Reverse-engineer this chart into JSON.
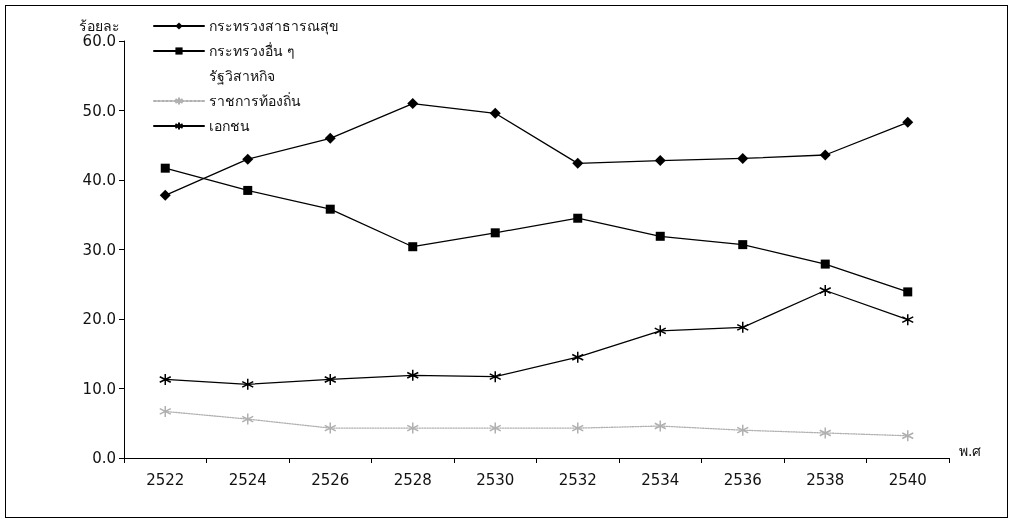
{
  "chart_data": {
    "type": "line",
    "ylabel": "ร้อยละ",
    "xlabel": "พ.ศ",
    "categories": [
      "2522",
      "2524",
      "2526",
      "2528",
      "2530",
      "2532",
      "2534",
      "2536",
      "2538",
      "2540"
    ],
    "series": [
      {
        "name": "กระทรวงสาธารณสุข",
        "color": "#000000",
        "marker": "diamond",
        "line_style": "solid",
        "values": [
          37.8,
          43.0,
          46.0,
          51.0,
          49.6,
          42.4,
          42.8,
          43.1,
          43.6,
          48.3
        ]
      },
      {
        "name": "กระทรวงอื่น ๆ",
        "color": "#000000",
        "marker": "square",
        "line_style": "solid",
        "values": [
          41.7,
          38.5,
          35.8,
          30.4,
          32.4,
          34.5,
          31.9,
          30.7,
          27.9,
          23.9
        ]
      },
      {
        "name": "รัฐวิสาหกิจ",
        "marker": "none",
        "line_style": "solid",
        "values": [
          null,
          null,
          null,
          null,
          null,
          null,
          null,
          null,
          null,
          null
        ]
      },
      {
        "name": "ราชการท้องถิ่น",
        "color": "#b0b0b0",
        "marker": "cross",
        "line_style": "dotted",
        "values": [
          6.7,
          5.6,
          4.3,
          4.3,
          4.3,
          4.3,
          4.6,
          4.0,
          3.6,
          3.2
        ]
      },
      {
        "name": "เอกชน",
        "color": "#000000",
        "marker": "cross",
        "line_style": "solid",
        "values": [
          11.3,
          10.6,
          11.3,
          11.9,
          11.7,
          14.5,
          18.3,
          18.8,
          24.1,
          19.9
        ]
      }
    ],
    "ylim": [
      0,
      60
    ],
    "yticks": [
      {
        "value": 0,
        "label": "0.0"
      },
      {
        "value": 10,
        "label": "10.0"
      },
      {
        "value": 20,
        "label": "20.0"
      },
      {
        "value": 30,
        "label": "30.0"
      },
      {
        "value": 40,
        "label": "40.0"
      },
      {
        "value": 50,
        "label": "50.0"
      },
      {
        "value": 60,
        "label": "60.0"
      }
    ],
    "grid": false,
    "legend": "top left"
  }
}
